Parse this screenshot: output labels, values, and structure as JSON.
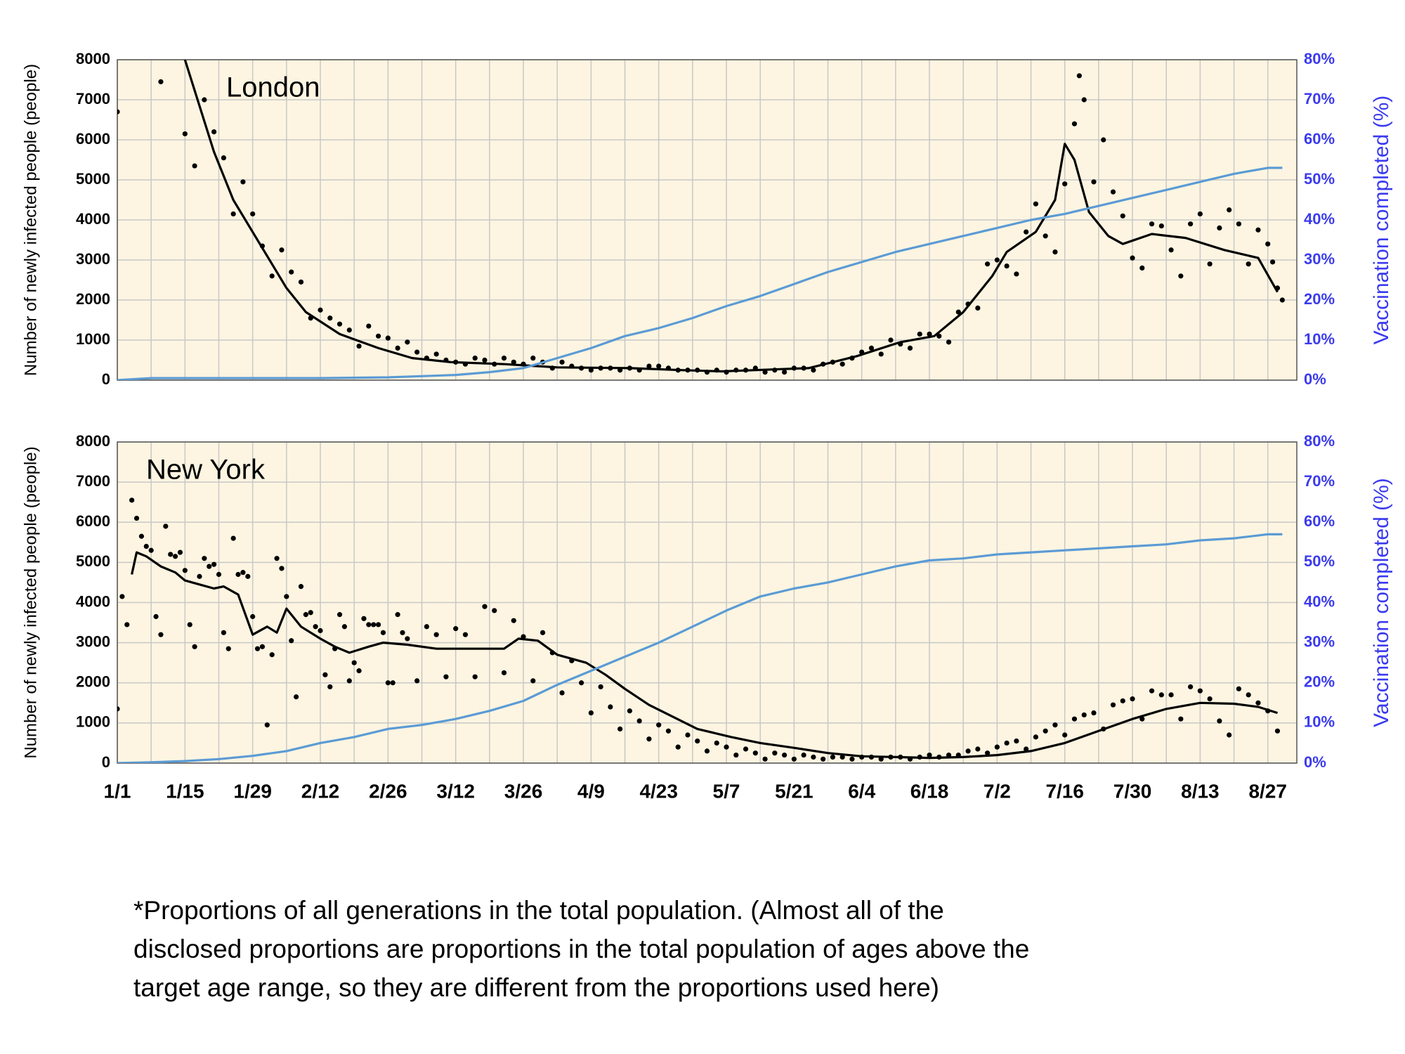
{
  "chart_data": [
    {
      "type": "line",
      "title": "London",
      "ylabel": "Number of newly infected people (people)",
      "y2label": "Vaccination completed (%)",
      "xlim": [
        0,
        244
      ],
      "ylim": [
        0,
        8000
      ],
      "y2lim": [
        0,
        80
      ],
      "yticks": [
        0,
        1000,
        2000,
        3000,
        4000,
        5000,
        6000,
        7000,
        8000
      ],
      "y2ticks": [
        {
          "value": 0,
          "label": "0%"
        },
        {
          "value": 10,
          "label": "10%"
        },
        {
          "value": 20,
          "label": "20%"
        },
        {
          "value": 30,
          "label": "30%"
        },
        {
          "value": 40,
          "label": "40%"
        },
        {
          "value": 50,
          "label": "50%"
        },
        {
          "value": 60,
          "label": "60%"
        },
        {
          "value": 70,
          "label": "70%"
        },
        {
          "value": 80,
          "label": "80%"
        }
      ],
      "x_minor_ticks": [
        7,
        21,
        35,
        49,
        63,
        77,
        91,
        105,
        119,
        133,
        147,
        161,
        175,
        189,
        203,
        217,
        231
      ],
      "grid": true,
      "background": "#fdf5e1",
      "series": [
        {
          "type": "scatter",
          "color": "#000000",
          "x": [
            0,
            9,
            14,
            16,
            18,
            20,
            22,
            24,
            26,
            28,
            30,
            32,
            34,
            36,
            38,
            40,
            42,
            44,
            46,
            48,
            50,
            52,
            54,
            56,
            58,
            60,
            62,
            64,
            66,
            68,
            70,
            72,
            74,
            76,
            78,
            80,
            82,
            84,
            86,
            88,
            90,
            92,
            94,
            96,
            98,
            100,
            102,
            104,
            106,
            108,
            110,
            112,
            114,
            116,
            118,
            120,
            122,
            124,
            126,
            128,
            130,
            132,
            134,
            136,
            138,
            140,
            142,
            144,
            146,
            148,
            150,
            152,
            154,
            156,
            158,
            160,
            162,
            164,
            166,
            168,
            170,
            172,
            174,
            176,
            178,
            180,
            182,
            184,
            186,
            188,
            190,
            192,
            194,
            196,
            198,
            199,
            200,
            202,
            204,
            206,
            208,
            210,
            212,
            214,
            216,
            218,
            220,
            222,
            224,
            226,
            228,
            230,
            232,
            234,
            236,
            238,
            239,
            240,
            241
          ],
          "values": [
            6700,
            7450,
            6150,
            5350,
            7000,
            6200,
            5550,
            4150,
            4950,
            4150,
            3350,
            2600,
            3250,
            2700,
            2450,
            1550,
            1750,
            1550,
            1400,
            1250,
            850,
            1350,
            1100,
            1050,
            800,
            950,
            700,
            550,
            650,
            500,
            450,
            400,
            550,
            500,
            400,
            550,
            450,
            400,
            550,
            450,
            300,
            450,
            350,
            300,
            250,
            300,
            300,
            250,
            300,
            250,
            350,
            350,
            300,
            250,
            250,
            250,
            200,
            250,
            200,
            250,
            250,
            300,
            200,
            250,
            200,
            300,
            300,
            250,
            400,
            450,
            400,
            550,
            700,
            800,
            650,
            1000,
            900,
            800,
            1150,
            1150,
            1100,
            950,
            1700,
            1900,
            1800,
            2900,
            3000,
            2850,
            2650,
            3700,
            4400,
            3600,
            3200,
            4900,
            6400,
            7600,
            7000,
            4950,
            6000,
            4700,
            4100,
            3050,
            2800,
            3900,
            3850,
            3250,
            2600,
            3900,
            4150,
            2900,
            3800,
            4250,
            3900,
            2900,
            3750,
            3400,
            2950,
            2300,
            2000
          ]
        },
        {
          "type": "line",
          "color": "#000000",
          "x": [
            14,
            20,
            24,
            30,
            35,
            39,
            46,
            54,
            61,
            69,
            80,
            91,
            106,
            117,
            125,
            134,
            143,
            153,
            162,
            169,
            175,
            181,
            184,
            190,
            194,
            196,
            198,
            201,
            205,
            208,
            214,
            221,
            229,
            236,
            240
          ],
          "values": [
            8000,
            5700,
            4500,
            3300,
            2300,
            1700,
            1150,
            800,
            550,
            450,
            400,
            320,
            300,
            250,
            220,
            260,
            300,
            600,
            950,
            1100,
            1700,
            2600,
            3200,
            3700,
            4500,
            5900,
            5500,
            4200,
            3600,
            3400,
            3650,
            3550,
            3250,
            3050,
            2200
          ]
        },
        {
          "type": "line",
          "axis": "y2",
          "color": "#5b9bd5",
          "x": [
            0,
            7,
            14,
            28,
            42,
            56,
            63,
            70,
            77,
            84,
            91,
            98,
            105,
            112,
            119,
            126,
            133,
            140,
            147,
            154,
            161,
            168,
            175,
            182,
            189,
            196,
            203,
            210,
            217,
            224,
            231,
            238,
            241
          ],
          "values": [
            0,
            0.5,
            0.5,
            0.5,
            0.5,
            0.7,
            1,
            1.3,
            2,
            3,
            5.5,
            8,
            11,
            13,
            15.5,
            18.5,
            21,
            24,
            27,
            29.5,
            32,
            34,
            36,
            38,
            40,
            41.5,
            43.5,
            45.5,
            47.5,
            49.5,
            51.5,
            53,
            53
          ]
        }
      ]
    },
    {
      "type": "line",
      "title": "New York",
      "ylabel": "Number of newly infected people (people)",
      "y2label": "Vaccination completed (%)",
      "xlim": [
        0,
        244
      ],
      "ylim": [
        0,
        8000
      ],
      "y2lim": [
        0,
        80
      ],
      "yticks": [
        0,
        1000,
        2000,
        3000,
        4000,
        5000,
        6000,
        7000,
        8000
      ],
      "y2ticks": [
        {
          "value": 0,
          "label": "0%"
        },
        {
          "value": 10,
          "label": "10%"
        },
        {
          "value": 20,
          "label": "20%"
        },
        {
          "value": 30,
          "label": "30%"
        },
        {
          "value": 40,
          "label": "40%"
        },
        {
          "value": 50,
          "label": "50%"
        },
        {
          "value": 60,
          "label": "60%"
        },
        {
          "value": 70,
          "label": "70%"
        },
        {
          "value": 80,
          "label": "80%"
        }
      ],
      "xticks": [
        {
          "value": 0,
          "label": "1/1"
        },
        {
          "value": 14,
          "label": "1/15"
        },
        {
          "value": 28,
          "label": "1/29"
        },
        {
          "value": 42,
          "label": "2/12"
        },
        {
          "value": 56,
          "label": "2/26"
        },
        {
          "value": 70,
          "label": "3/12"
        },
        {
          "value": 84,
          "label": "3/26"
        },
        {
          "value": 98,
          "label": "4/9"
        },
        {
          "value": 112,
          "label": "4/23"
        },
        {
          "value": 126,
          "label": "5/7"
        },
        {
          "value": 140,
          "label": "5/21"
        },
        {
          "value": 154,
          "label": "6/4"
        },
        {
          "value": 168,
          "label": "6/18"
        },
        {
          "value": 182,
          "label": "7/2"
        },
        {
          "value": 196,
          "label": "7/16"
        },
        {
          "value": 210,
          "label": "7/30"
        },
        {
          "value": 224,
          "label": "8/13"
        },
        {
          "value": 238,
          "label": "8/27"
        }
      ],
      "x_minor_ticks": [
        7,
        21,
        35,
        49,
        63,
        77,
        91,
        105,
        119,
        133,
        147,
        161,
        175,
        189,
        203,
        217,
        231
      ],
      "grid": true,
      "background": "#fdf5e1",
      "series": [
        {
          "type": "scatter",
          "color": "#000000",
          "x": [
            0,
            1,
            2,
            3,
            4,
            5,
            6,
            7,
            8,
            9,
            10,
            11,
            12,
            13,
            14,
            15,
            16,
            17,
            18,
            19,
            20,
            21,
            22,
            23,
            24,
            25,
            26,
            27,
            28,
            29,
            30,
            31,
            32,
            33,
            34,
            35,
            36,
            37,
            38,
            39,
            40,
            41,
            42,
            43,
            44,
            45,
            46,
            47,
            48,
            49,
            50,
            51,
            52,
            53,
            54,
            55,
            56,
            57,
            58,
            59,
            60,
            62,
            64,
            66,
            68,
            70,
            72,
            74,
            76,
            78,
            80,
            82,
            84,
            86,
            88,
            90,
            92,
            94,
            96,
            98,
            100,
            102,
            104,
            106,
            108,
            110,
            112,
            114,
            116,
            118,
            120,
            122,
            124,
            126,
            128,
            130,
            132,
            134,
            136,
            138,
            140,
            142,
            144,
            146,
            148,
            150,
            152,
            154,
            156,
            158,
            160,
            162,
            164,
            166,
            168,
            170,
            172,
            174,
            176,
            178,
            180,
            182,
            184,
            186,
            188,
            190,
            192,
            194,
            196,
            198,
            200,
            202,
            204,
            206,
            208,
            210,
            212,
            214,
            216,
            218,
            220,
            222,
            224,
            226,
            228,
            230,
            232,
            234,
            236,
            238,
            240
          ],
          "values": [
            1350,
            4150,
            3450,
            6550,
            6100,
            5650,
            5400,
            5300,
            3650,
            3200,
            5900,
            5200,
            5150,
            5250,
            4800,
            3450,
            2900,
            4650,
            5100,
            4900,
            4950,
            4700,
            3250,
            2850,
            5600,
            4700,
            4750,
            4650,
            3650,
            2850,
            2900,
            950,
            2700,
            5100,
            4850,
            4150,
            3050,
            1650,
            4400,
            3700,
            3750,
            3400,
            3300,
            2200,
            1900,
            2850,
            3700,
            3400,
            2050,
            2500,
            2300,
            3600,
            3450,
            3450,
            3450,
            3250,
            2000,
            2000,
            3700,
            3250,
            3100,
            2050,
            3400,
            3200,
            2150,
            3350,
            3200,
            2150,
            3900,
            3800,
            2250,
            3550,
            3150,
            2050,
            3250,
            2750,
            1750,
            2550,
            2000,
            1250,
            1900,
            1400,
            850,
            1300,
            1050,
            600,
            950,
            800,
            400,
            700,
            550,
            300,
            500,
            400,
            200,
            350,
            250,
            100,
            250,
            200,
            100,
            200,
            150,
            100,
            150,
            150,
            100,
            150,
            150,
            100,
            150,
            150,
            100,
            150,
            200,
            150,
            200,
            200,
            300,
            350,
            250,
            400,
            500,
            550,
            350,
            650,
            800,
            950,
            700,
            1100,
            1200,
            1250,
            850,
            1450,
            1550,
            1600,
            1100,
            1800,
            1700,
            1700,
            1100,
            1900,
            1800,
            1600,
            1050,
            700,
            1850,
            1700,
            1500,
            1300,
            800
          ]
        },
        {
          "type": "line",
          "color": "#000000",
          "x": [
            3,
            4,
            6,
            9,
            12,
            14,
            17,
            20,
            22,
            25,
            28,
            31,
            33,
            35,
            38,
            42,
            45,
            48,
            52,
            55,
            60,
            66,
            72,
            80,
            83,
            87,
            91,
            97,
            101,
            105,
            110,
            115,
            120,
            127,
            133,
            140,
            147,
            154,
            161,
            168,
            175,
            182,
            189,
            196,
            203,
            210,
            217,
            224,
            231,
            236,
            240
          ],
          "values": [
            4700,
            5250,
            5150,
            4900,
            4750,
            4550,
            4450,
            4350,
            4400,
            4200,
            3200,
            3400,
            3250,
            3850,
            3400,
            3100,
            2900,
            2750,
            2900,
            3000,
            2950,
            2850,
            2850,
            2850,
            3100,
            3050,
            2700,
            2500,
            2200,
            1850,
            1450,
            1150,
            850,
            650,
            500,
            380,
            250,
            170,
            150,
            130,
            150,
            200,
            300,
            500,
            800,
            1100,
            1350,
            1500,
            1480,
            1400,
            1250
          ]
        },
        {
          "type": "line",
          "axis": "y2",
          "color": "#5b9bd5",
          "x": [
            0,
            7,
            14,
            21,
            28,
            35,
            42,
            49,
            56,
            63,
            70,
            77,
            84,
            91,
            98,
            105,
            112,
            119,
            126,
            133,
            140,
            147,
            154,
            161,
            168,
            175,
            182,
            189,
            196,
            203,
            210,
            217,
            224,
            231,
            238,
            241
          ],
          "values": [
            0,
            0.2,
            0.5,
            1,
            1.8,
            3,
            5,
            6.5,
            8.5,
            9.5,
            11,
            13,
            15.5,
            19.5,
            23,
            26.5,
            30,
            34,
            38,
            41.5,
            43.5,
            45,
            47,
            49,
            50.5,
            51,
            52,
            52.5,
            53,
            53.5,
            54,
            54.5,
            55.5,
            56,
            57,
            57
          ]
        }
      ]
    }
  ],
  "notes": [
    "*Proportions of all generations in the total population. (Almost all of the",
    "disclosed proportions are proportions in the total population of ages above the",
    "target age range, so they are different from the proportions used here)"
  ]
}
